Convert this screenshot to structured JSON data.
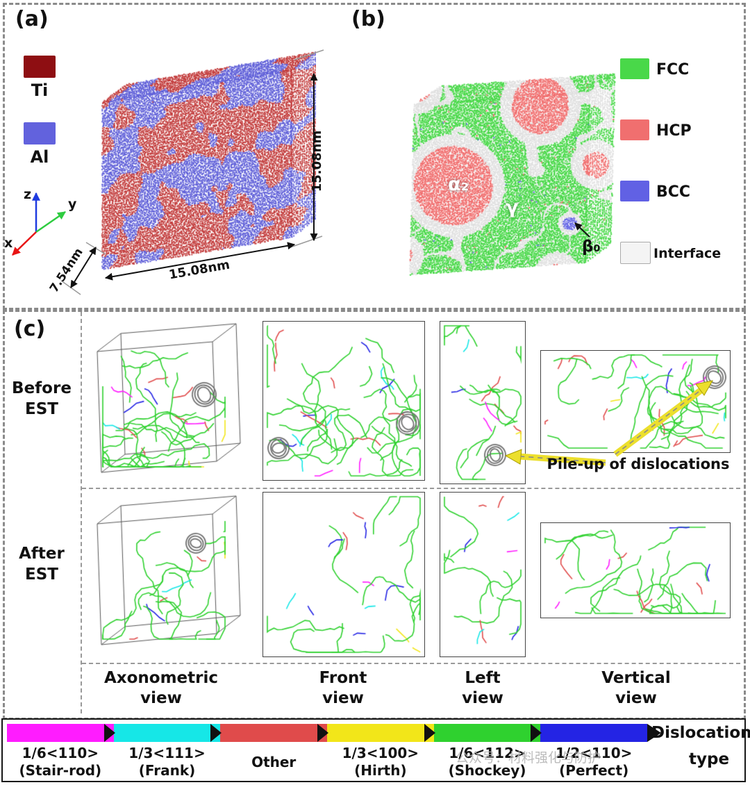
{
  "panel_a": {
    "label": "(a)",
    "legend": [
      {
        "name": "Ti",
        "color": "#8e0e12"
      },
      {
        "name": "Al",
        "color": "#6262dd"
      }
    ],
    "axes": {
      "x": {
        "label": "x",
        "color": "#e81414"
      },
      "y": {
        "label": "y",
        "color": "#2ecc40"
      },
      "z": {
        "label": "z",
        "color": "#1f3be0"
      }
    },
    "dims": {
      "height": "15.08nm",
      "width": "15.08nm",
      "depth": "7.54nm"
    },
    "atom_colors": {
      "ti": "#c23b3b",
      "al": "#5f5fd8"
    }
  },
  "panel_b": {
    "label": "(b)",
    "legend": [
      {
        "name": "FCC",
        "color": "#49d849"
      },
      {
        "name": "HCP",
        "color": "#f06f6f"
      },
      {
        "name": "BCC",
        "color": "#6161e4"
      },
      {
        "name": "Interface",
        "color": "#f4f4f4"
      }
    ],
    "phase_labels": {
      "alpha2": "α₂",
      "gamma": "γ",
      "beta0": "β₀"
    }
  },
  "panel_c": {
    "label": "(c)",
    "row_before": {
      "line1": "Before",
      "line2": "EST"
    },
    "row_after": {
      "line1": "After",
      "line2": "EST"
    },
    "columns": [
      {
        "line1": "Axonometric",
        "line2": "view"
      },
      {
        "line1": "Front",
        "line2": "view"
      },
      {
        "line1": "Left",
        "line2": "view"
      },
      {
        "line1": "Vertical",
        "line2": "view"
      }
    ],
    "annotation": "Pile-up of dislocations"
  },
  "dislocation_legend": {
    "title_line1": "Dislocation",
    "title_line2": "type",
    "items": [
      {
        "burgers": "1/6<110>",
        "name": "(Stair-rod)",
        "color": "#ff1cff"
      },
      {
        "burgers": "1/3<111>",
        "name": "(Frank)",
        "color": "#16e7e7"
      },
      {
        "burgers": "Other",
        "name": "",
        "color": "#e04b4b"
      },
      {
        "burgers": "1/3<100>",
        "name": "(Hirth)",
        "color": "#f2e619"
      },
      {
        "burgers": "1/6<112>",
        "name": "(Shockey)",
        "color": "#2fd12f"
      },
      {
        "burgers": "1/2<110>",
        "name": "(Perfect)",
        "color": "#2424e4"
      }
    ]
  },
  "watermark": "公众号：材料强化与防护"
}
